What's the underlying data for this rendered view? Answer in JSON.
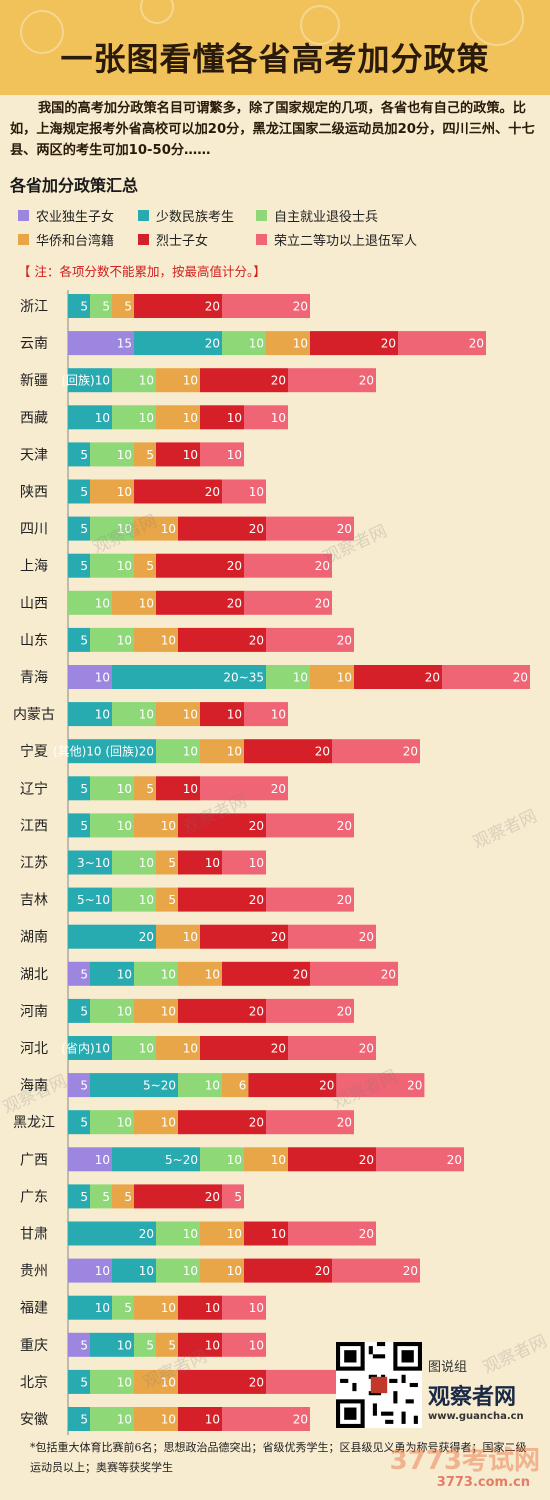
{
  "title": "一张图看懂各省高考加分政策",
  "intro": "我国的高考加分政策名目可谓繁多，除了国家规定的几项，各省也有自己的政策。比如，上海规定报考外省高校可以加20分，黑龙江国家二级运动员加20分，四川三州、十七县、两区的考生可加10-50分……",
  "subtitle": "各省加分政策汇总",
  "note": "【 注：各项分数不能累加，按最高值计分。】",
  "footnote": "*包括重大体育比赛前6名；思想政治品德突出；省级优秀学生；区县级见义勇为称号获得者；国家二级运动员以上；奥赛等获奖学生",
  "brand": {
    "sub": "图说组",
    "name": "观察者网",
    "url": "www.guancha.cn"
  },
  "watermark": "观察者网",
  "bottom_logo": {
    "name": "3773考试网",
    "url": "3773.com.cn"
  },
  "colors": {
    "rural": "#9c86e0",
    "minority": "#28aab1",
    "veteran": "#8ed877",
    "overseas": "#e8a649",
    "martyr": "#d5202a",
    "honor": "#f06575"
  },
  "chart_data": {
    "type": "bar",
    "stacked": true,
    "orientation": "horizontal",
    "categories": [
      "浙江",
      "云南",
      "新疆",
      "西藏",
      "天津",
      "陕西",
      "四川",
      "上海",
      "山西",
      "山东",
      "青海",
      "内蒙古",
      "宁夏",
      "辽宁",
      "江西",
      "江苏",
      "吉林",
      "湖南",
      "湖北",
      "河南",
      "河北",
      "海南",
      "黑龙江",
      "广西",
      "广东",
      "甘肃",
      "贵州",
      "福建",
      "重庆",
      "北京",
      "安徽"
    ],
    "series": [
      {
        "name": "农业独生子女",
        "key": "rural",
        "values": [
          null,
          15,
          null,
          null,
          null,
          null,
          null,
          null,
          null,
          null,
          10,
          null,
          null,
          null,
          null,
          null,
          null,
          null,
          5,
          null,
          null,
          5,
          null,
          10,
          null,
          null,
          10,
          null,
          5,
          null,
          null
        ],
        "labels": [
          null,
          "15",
          null,
          null,
          null,
          null,
          null,
          null,
          null,
          null,
          "10",
          null,
          null,
          null,
          null,
          null,
          null,
          null,
          "5",
          null,
          null,
          "5",
          null,
          "10",
          null,
          null,
          "10",
          null,
          "5",
          null,
          null
        ]
      },
      {
        "name": "少数民族考生",
        "key": "minority",
        "values": [
          5,
          20,
          10,
          10,
          5,
          5,
          5,
          5,
          null,
          5,
          35,
          10,
          20,
          5,
          5,
          10,
          10,
          20,
          10,
          5,
          10,
          20,
          5,
          20,
          5,
          20,
          10,
          10,
          10,
          5,
          5
        ],
        "labels": [
          "5",
          "20",
          "(回族)10",
          "10",
          "5",
          "5",
          "5",
          "5",
          null,
          "5",
          "20~35",
          "10",
          "(其他)10 (回族)20",
          "5",
          "5",
          "3~10",
          "5~10",
          "20",
          "10",
          "5",
          "(省内)10",
          "5~20",
          "5",
          "5~20",
          "5",
          "20",
          "10",
          "10",
          "10",
          "5",
          "5"
        ]
      },
      {
        "name": "自主就业退役士兵",
        "key": "veteran",
        "values": [
          5,
          10,
          10,
          10,
          10,
          null,
          10,
          10,
          10,
          10,
          10,
          10,
          10,
          10,
          10,
          10,
          10,
          null,
          10,
          10,
          10,
          10,
          10,
          10,
          5,
          10,
          10,
          5,
          5,
          10,
          10
        ],
        "labels": [
          "5",
          "10",
          "10",
          "10",
          "10",
          null,
          "10",
          "10",
          "10",
          "10",
          "10",
          "10",
          "10",
          "10",
          "10",
          "10",
          "10",
          null,
          "10",
          "10",
          "10",
          "10",
          "10",
          "10",
          "5",
          "10",
          "10",
          "5",
          "5",
          "10",
          "10"
        ]
      },
      {
        "name": "华侨和台湾籍",
        "key": "overseas",
        "values": [
          5,
          10,
          10,
          10,
          5,
          10,
          10,
          5,
          10,
          10,
          10,
          10,
          10,
          5,
          10,
          5,
          5,
          10,
          10,
          10,
          10,
          6,
          10,
          10,
          5,
          10,
          10,
          10,
          5,
          10,
          10
        ],
        "labels": [
          "5",
          "10",
          "10",
          "10",
          "5",
          "10",
          "10",
          "5",
          "10",
          "10",
          "10",
          "10",
          "10",
          "5",
          "10",
          "5",
          "5",
          "10",
          "10",
          "10",
          "10",
          "6",
          "10",
          "10",
          "5",
          "10",
          "10",
          "10",
          "5",
          "10",
          "10"
        ]
      },
      {
        "name": "烈士子女",
        "key": "martyr",
        "values": [
          20,
          20,
          20,
          10,
          10,
          20,
          20,
          20,
          20,
          20,
          20,
          10,
          20,
          10,
          20,
          10,
          20,
          20,
          20,
          20,
          20,
          20,
          20,
          20,
          20,
          10,
          20,
          10,
          10,
          20,
          10
        ],
        "labels": [
          "20",
          "20",
          "20",
          "10",
          "10",
          "20",
          "20",
          "20",
          "20",
          "20",
          "20",
          "10",
          "20",
          "10",
          "20",
          "10",
          "20",
          "20",
          "20",
          "20",
          "20",
          "20",
          "20",
          "20",
          "20",
          "10",
          "20",
          "10",
          "10",
          "20",
          "10"
        ]
      },
      {
        "name": "荣立二等功以上退伍军人",
        "key": "honor",
        "values": [
          20,
          20,
          20,
          10,
          10,
          10,
          20,
          20,
          20,
          20,
          20,
          10,
          20,
          20,
          20,
          10,
          20,
          20,
          20,
          20,
          20,
          20,
          20,
          20,
          5,
          20,
          20,
          10,
          10,
          20,
          20
        ],
        "labels": [
          "20",
          "20",
          "20",
          "10",
          "10",
          "10",
          "20",
          "20",
          "20",
          "20",
          "20",
          "10",
          "20",
          "20",
          "20",
          "10",
          "20",
          "20",
          "20",
          "20",
          "20",
          "20",
          "20",
          "20",
          "5",
          "20",
          "20",
          "10",
          "10",
          "20",
          "20"
        ]
      }
    ]
  }
}
